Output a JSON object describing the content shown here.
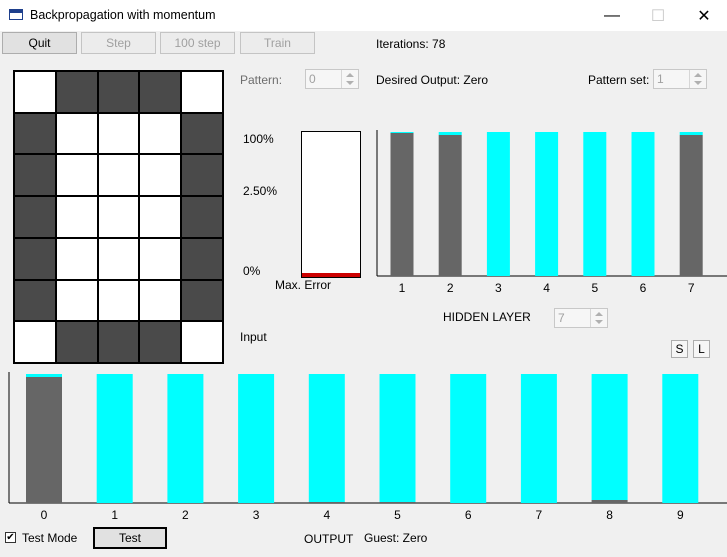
{
  "window": {
    "title": "Backpropagation with momentum",
    "minimize_glyph": "—",
    "maximize_glyph": "☐",
    "close_glyph": "✕"
  },
  "toolbar": {
    "quit": "Quit",
    "step": "Step",
    "step100": "100 step",
    "train": "Train",
    "iterations": "Iterations: 78"
  },
  "pattern": {
    "label": "Pattern:",
    "value": "0",
    "desired_output": "Desired Output: Zero",
    "set_label": "Pattern set:",
    "set_value": "1"
  },
  "input": {
    "label": "Input",
    "rows": 7,
    "cols": 5,
    "cells": [
      0,
      1,
      1,
      1,
      0,
      1,
      0,
      0,
      0,
      1,
      1,
      0,
      0,
      0,
      1,
      1,
      0,
      0,
      0,
      1,
      1,
      0,
      0,
      0,
      1,
      1,
      0,
      0,
      0,
      1,
      0,
      1,
      1,
      1,
      0
    ]
  },
  "error": {
    "tick_top": "100%",
    "tick_mid": "2.50%",
    "tick_bottom": "0%",
    "label": "Max. Error",
    "fraction": 0.03
  },
  "hidden": {
    "label": "HIDDEN LAYER",
    "count_value": "7",
    "s_button": "S",
    "l_button": "L",
    "chart_data": {
      "type": "bar",
      "categories": [
        "1",
        "2",
        "3",
        "4",
        "5",
        "6",
        "7"
      ],
      "activations": [
        0.99,
        0.98,
        0.0,
        0.0,
        0.0,
        0.0,
        0.98
      ]
    }
  },
  "output": {
    "label": "OUTPUT",
    "guess": "Guest: Zero",
    "chart_data": {
      "type": "bar",
      "categories": [
        "0",
        "1",
        "2",
        "3",
        "4",
        "5",
        "6",
        "7",
        "8",
        "9"
      ],
      "activations": [
        0.98,
        0.0,
        0.0,
        0.0,
        0.01,
        0.01,
        0.0,
        0.0,
        0.02,
        0.0
      ]
    }
  },
  "footer": {
    "test_mode": "Test Mode",
    "test_mode_checked": "✔",
    "test_button": "Test"
  },
  "colors": {
    "active": "#666666",
    "inactive": "#00ffff",
    "error": "#cc0000",
    "cell_on": "#4a4a4a",
    "cell_off": "#ffffff"
  }
}
